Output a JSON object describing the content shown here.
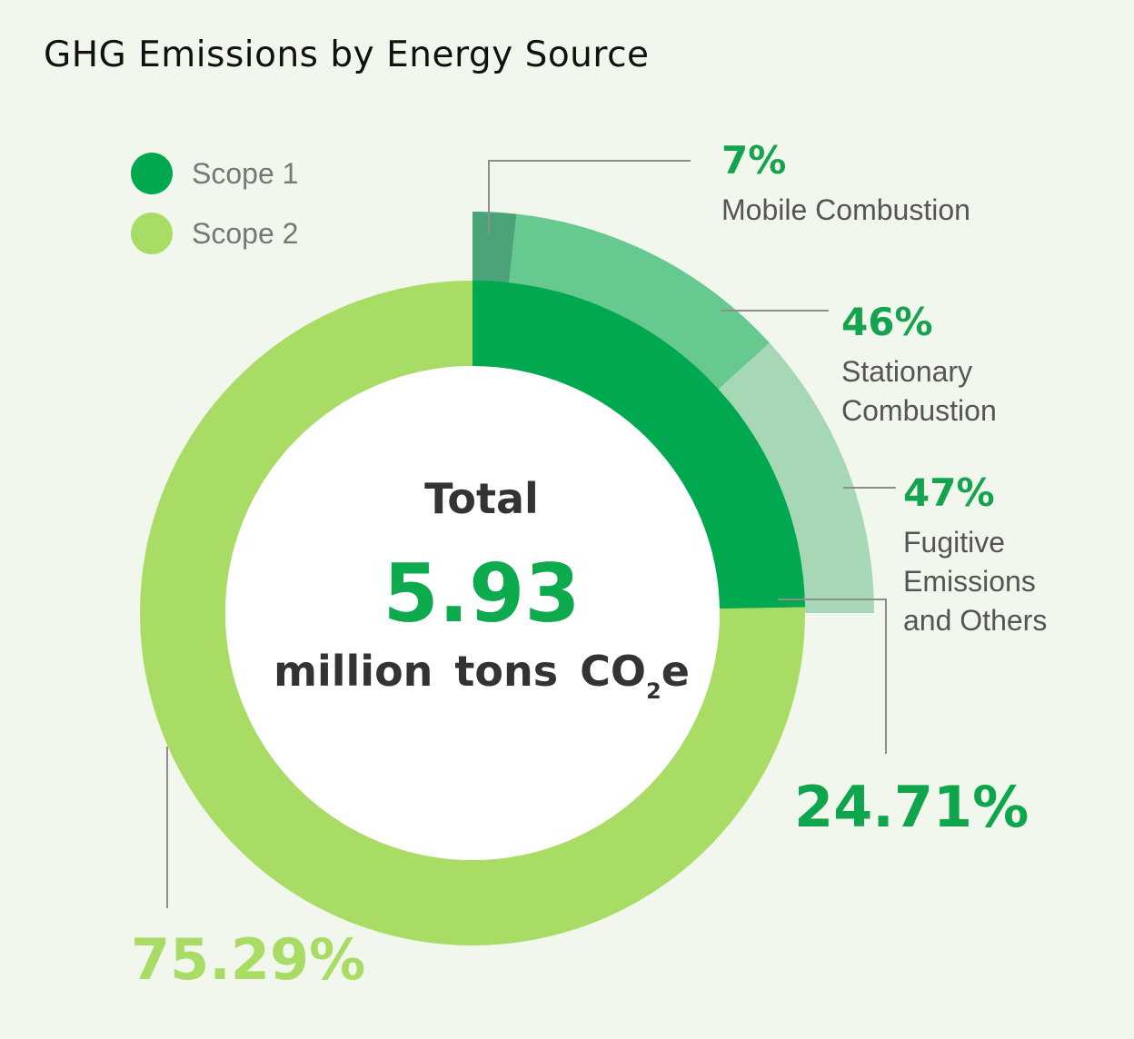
{
  "title": "GHG Emissions by Energy Source",
  "legend": [
    {
      "label": "Scope 1",
      "color": "#00a84f"
    },
    {
      "label": "Scope 2",
      "color": "#a9dc65"
    }
  ],
  "center": {
    "total_label": "Total",
    "value": "5.93",
    "unit_text": "million tons CO",
    "unit_sub": "2",
    "unit_tail": "e"
  },
  "chart_data": {
    "type": "pie",
    "title": "GHG Emissions by Energy Source",
    "total": {
      "value": 5.93,
      "unit": "million tons CO2e"
    },
    "series": [
      {
        "name": "Scope 1",
        "value": 24.71,
        "label": "24.71%",
        "color": "#00a84f"
      },
      {
        "name": "Scope 2",
        "value": 75.29,
        "label": "75.29%",
        "color": "#a9dc65"
      }
    ],
    "breakdown": {
      "parent": "Scope 1",
      "slices": [
        {
          "name": "Mobile Combustion",
          "value": 7,
          "label": "7%",
          "color": "#4ba378"
        },
        {
          "name": "Stationary Combustion",
          "value": 46,
          "label": "46%",
          "color": "#66c98f"
        },
        {
          "name": "Fugitive Emissions and Others",
          "value": 47,
          "label": "47%",
          "color": "#a6d8b6"
        }
      ]
    },
    "legend_position": "top-left"
  }
}
